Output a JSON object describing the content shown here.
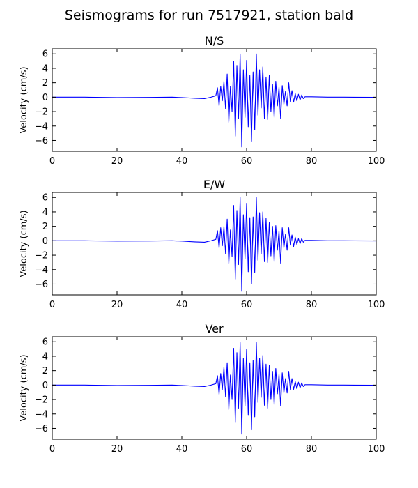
{
  "figure_title": "Seismograms for run 7517921, station bald",
  "colors": {
    "trace": "#0000ff"
  },
  "chart_data": [
    {
      "type": "line",
      "title": "N/S",
      "xlabel": "",
      "ylabel": "Velocity (cm/s)",
      "xlim": [
        0,
        100
      ],
      "ylim": [
        -7.5,
        6.7
      ],
      "xticks": [
        0,
        20,
        40,
        60,
        80,
        100
      ],
      "yticks": [
        -6,
        -4,
        -2,
        0,
        2,
        4,
        6
      ],
      "grid": false,
      "series": [
        {
          "color": "#0000ff",
          "x": [
            0,
            10,
            20,
            30,
            37,
            40,
            44,
            47,
            49,
            50.5,
            51,
            51.5,
            52,
            52.5,
            53,
            53.5,
            54,
            54.5,
            55,
            55.5,
            56,
            56.5,
            57,
            57.5,
            58,
            58.5,
            59,
            59.5,
            60,
            60.5,
            61,
            61.5,
            62,
            62.5,
            63,
            63.5,
            64,
            64.5,
            65,
            65.5,
            66,
            66.5,
            67,
            67.5,
            68,
            68.5,
            69,
            69.5,
            70,
            70.5,
            71,
            71.5,
            72,
            72.5,
            73,
            73.5,
            74,
            74.5,
            75,
            75.5,
            76,
            76.5,
            77,
            77.5,
            78,
            80,
            85,
            90,
            100
          ],
          "y": [
            0,
            0,
            -0.05,
            -0.03,
            0,
            -0.05,
            -0.15,
            -0.2,
            0,
            0.2,
            1.3,
            -1.2,
            1.5,
            -0.5,
            2.2,
            -1.6,
            3.2,
            -3.5,
            1.5,
            -2.0,
            5.0,
            -5.4,
            4.4,
            -3.0,
            6.0,
            -6.9,
            3.8,
            -2.8,
            5.1,
            -4.1,
            3.0,
            -6.1,
            3.5,
            -4.5,
            6.0,
            -2.5,
            3.8,
            -1.5,
            4.2,
            -3.0,
            2.8,
            -3.1,
            3.0,
            -2.0,
            1.8,
            -2.8,
            2.2,
            -1.2,
            1.4,
            -3.0,
            1.6,
            -1.0,
            0.8,
            -1.2,
            2.0,
            -0.6,
            0.9,
            -0.7,
            0.5,
            -0.5,
            0.4,
            -0.4,
            0.3,
            -0.2,
            0.05,
            0.05,
            0,
            0,
            -0.02
          ]
        }
      ]
    },
    {
      "type": "line",
      "title": "E/W",
      "xlabel": "",
      "ylabel": "Velocity (cm/s)",
      "xlim": [
        0,
        100
      ],
      "ylim": [
        -7.5,
        6.7
      ],
      "xticks": [
        0,
        20,
        40,
        60,
        80,
        100
      ],
      "yticks": [
        -6,
        -4,
        -2,
        0,
        2,
        4,
        6
      ],
      "grid": false,
      "series": [
        {
          "color": "#0000ff",
          "x": [
            0,
            10,
            20,
            30,
            37,
            40,
            44,
            47,
            49,
            50.5,
            51,
            51.5,
            52,
            52.5,
            53,
            53.5,
            54,
            54.5,
            55,
            55.5,
            56,
            56.5,
            57,
            57.5,
            58,
            58.5,
            59,
            59.5,
            60,
            60.5,
            61,
            61.5,
            62,
            62.5,
            63,
            63.5,
            64,
            64.5,
            65,
            65.5,
            66,
            66.5,
            67,
            67.5,
            68,
            68.5,
            69,
            69.5,
            70,
            70.5,
            71,
            71.5,
            72,
            72.5,
            73,
            73.5,
            74,
            74.5,
            75,
            75.5,
            76,
            76.5,
            77,
            77.5,
            78,
            80,
            85,
            90,
            100
          ],
          "y": [
            0,
            0,
            -0.05,
            -0.03,
            0,
            -0.05,
            -0.15,
            -0.2,
            0,
            0.2,
            1.4,
            -1.0,
            1.8,
            -0.7,
            2.0,
            -1.8,
            3.0,
            -3.2,
            1.5,
            -2.2,
            4.9,
            -5.3,
            4.2,
            -3.3,
            6.0,
            -7.0,
            3.6,
            -2.5,
            5.2,
            -4.3,
            3.2,
            -6.0,
            3.3,
            -4.4,
            6.0,
            -2.7,
            3.9,
            -1.8,
            4.0,
            -2.9,
            3.1,
            -3.0,
            2.5,
            -2.1,
            2.0,
            -2.9,
            2.1,
            -1.3,
            1.4,
            -3.1,
            1.8,
            -1.0,
            0.9,
            -1.3,
            1.8,
            -0.6,
            0.8,
            -0.8,
            0.5,
            -0.5,
            0.3,
            -0.4,
            0.3,
            -0.2,
            0.05,
            0.05,
            0,
            0,
            -0.02
          ]
        }
      ]
    },
    {
      "type": "line",
      "title": "Ver",
      "xlabel": "",
      "ylabel": "Velocity (cm/s)",
      "xlim": [
        0,
        100
      ],
      "ylim": [
        -7.5,
        6.7
      ],
      "xticks": [
        0,
        20,
        40,
        60,
        80,
        100
      ],
      "yticks": [
        -6,
        -4,
        -2,
        0,
        2,
        4,
        6
      ],
      "grid": false,
      "series": [
        {
          "color": "#0000ff",
          "x": [
            0,
            10,
            20,
            30,
            37,
            40,
            44,
            47,
            49,
            50.5,
            51,
            51.5,
            52,
            52.5,
            53,
            53.5,
            54,
            54.5,
            55,
            55.5,
            56,
            56.5,
            57,
            57.5,
            58,
            58.5,
            59,
            59.5,
            60,
            60.5,
            61,
            61.5,
            62,
            62.5,
            63,
            63.5,
            64,
            64.5,
            65,
            65.5,
            66,
            66.5,
            67,
            67.5,
            68,
            68.5,
            69,
            69.5,
            70,
            70.5,
            71,
            71.5,
            72,
            72.5,
            73,
            73.5,
            74,
            74.5,
            75,
            75.5,
            76,
            76.5,
            77,
            77.5,
            78,
            80,
            85,
            90,
            100
          ],
          "y": [
            0,
            0,
            -0.05,
            -0.03,
            0,
            -0.05,
            -0.15,
            -0.2,
            0,
            0.2,
            1.3,
            -1.3,
            1.6,
            -0.6,
            2.5,
            -1.6,
            3.1,
            -3.4,
            1.4,
            -2.0,
            5.1,
            -5.2,
            4.5,
            -3.2,
            5.9,
            -6.8,
            3.7,
            -2.9,
            5.0,
            -4.2,
            3.1,
            -6.2,
            3.4,
            -4.4,
            5.9,
            -2.4,
            3.7,
            -1.7,
            4.1,
            -2.8,
            2.9,
            -3.2,
            2.7,
            -2.0,
            1.9,
            -2.7,
            2.3,
            -1.2,
            1.5,
            -2.9,
            1.7,
            -1.1,
            0.9,
            -1.1,
            1.9,
            -0.6,
            0.9,
            -0.6,
            0.5,
            -0.5,
            0.4,
            -0.4,
            0.3,
            -0.2,
            0.05,
            0.05,
            0,
            0,
            -0.02
          ]
        }
      ]
    }
  ]
}
